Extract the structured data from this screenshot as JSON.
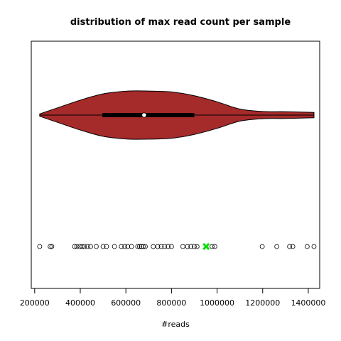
{
  "chart_data": {
    "type": "violin",
    "title": "distribution of max read count per sample",
    "xlabel": "#reads",
    "ylabel": "",
    "xlim": [
      185000,
      1450000
    ],
    "x_ticks": [
      200000,
      400000,
      600000,
      800000,
      1000000,
      1200000,
      1400000
    ],
    "x_tick_labels": [
      "200000",
      "400000",
      "600000",
      "800000",
      "1000000",
      "1200000",
      "1400000"
    ],
    "grid": false,
    "violin": {
      "fill_color": "#a52a2a",
      "min": 222000,
      "max": 1425000,
      "q1": 497000,
      "median": 680000,
      "q3": 900000,
      "density_profile": [
        {
          "x": 222000,
          "half_width": 0.05
        },
        {
          "x": 300000,
          "half_width": 0.3
        },
        {
          "x": 400000,
          "half_width": 0.62
        },
        {
          "x": 500000,
          "half_width": 0.88
        },
        {
          "x": 600000,
          "half_width": 0.99
        },
        {
          "x": 680000,
          "half_width": 1.0
        },
        {
          "x": 800000,
          "half_width": 0.96
        },
        {
          "x": 900000,
          "half_width": 0.8
        },
        {
          "x": 1000000,
          "half_width": 0.55
        },
        {
          "x": 1100000,
          "half_width": 0.25
        },
        {
          "x": 1200000,
          "half_width": 0.15
        },
        {
          "x": 1300000,
          "half_width": 0.14
        },
        {
          "x": 1425000,
          "half_width": 0.11
        }
      ]
    },
    "points": [
      222000,
      268000,
      275000,
      375000,
      385000,
      398000,
      408000,
      418000,
      432000,
      445000,
      470000,
      500000,
      515000,
      550000,
      580000,
      595000,
      608000,
      625000,
      652000,
      660000,
      668000,
      676000,
      685000,
      720000,
      740000,
      755000,
      770000,
      785000,
      800000,
      850000,
      870000,
      885000,
      900000,
      912000,
      978000,
      990000,
      1198000,
      1262000,
      1318000,
      1332000,
      1395000,
      1425000
    ],
    "highlight_point": {
      "x": 952000,
      "color": "#00dd00"
    }
  }
}
